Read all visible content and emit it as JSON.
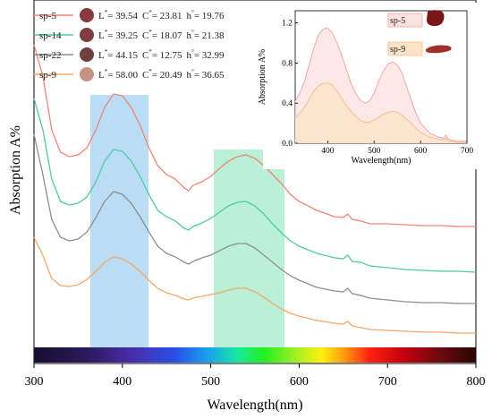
{
  "chart_data": [
    {
      "type": "line",
      "xlabel": "Wavelength(nm)",
      "ylabel": "Absorption A%",
      "xlim": [
        300,
        800
      ],
      "xticks": [
        300,
        400,
        500,
        600,
        700,
        800
      ],
      "y_ticks_shown": false,
      "grid": false,
      "legend_position": "top-left",
      "highlight_bands": [
        {
          "x_range": [
            362,
            428
          ],
          "color": "#a9d4f2"
        },
        {
          "x_range": [
            502,
            582
          ],
          "color": "#a8eccc"
        }
      ],
      "spectrum_bar": true,
      "series": [
        {
          "name": "sp-5",
          "color": "#f08478",
          "swatch": "#8a3a3c",
          "L": "39.54",
          "C": "23.81",
          "h": "19.76",
          "x": [
            300,
            310,
            320,
            330,
            340,
            350,
            360,
            370,
            380,
            390,
            400,
            410,
            420,
            430,
            440,
            450,
            460,
            470,
            475,
            480,
            490,
            500,
            510,
            520,
            530,
            540,
            550,
            560,
            570,
            580,
            590,
            600,
            620,
            640,
            650,
            655,
            660,
            670,
            680,
            700,
            720,
            740,
            760,
            780,
            800
          ],
          "y": [
            3.95,
            3.6,
            3.0,
            2.75,
            2.7,
            2.72,
            2.8,
            3.0,
            3.25,
            3.4,
            3.38,
            3.25,
            3.05,
            2.8,
            2.6,
            2.5,
            2.45,
            2.35,
            2.32,
            2.38,
            2.42,
            2.48,
            2.57,
            2.65,
            2.7,
            2.72,
            2.68,
            2.6,
            2.5,
            2.4,
            2.28,
            2.2,
            2.1,
            2.03,
            2.02,
            2.06,
            2.0,
            1.98,
            1.95,
            1.95,
            1.94,
            1.93,
            1.93,
            1.92,
            1.92
          ]
        },
        {
          "name": "sp-14",
          "color": "#4fcaa5",
          "swatch": "#7e3e42",
          "L": "39.25",
          "C": "18.07",
          "h": "21.38",
          "x": [
            300,
            310,
            320,
            330,
            340,
            350,
            360,
            370,
            380,
            390,
            400,
            410,
            420,
            430,
            440,
            450,
            460,
            470,
            475,
            480,
            490,
            500,
            510,
            520,
            530,
            540,
            550,
            560,
            570,
            580,
            590,
            600,
            620,
            640,
            650,
            655,
            660,
            670,
            680,
            700,
            720,
            740,
            760,
            780,
            800
          ],
          "y": [
            3.35,
            3.0,
            2.45,
            2.2,
            2.16,
            2.18,
            2.25,
            2.42,
            2.65,
            2.78,
            2.76,
            2.65,
            2.48,
            2.28,
            2.1,
            2.03,
            1.98,
            1.9,
            1.88,
            1.92,
            1.96,
            2.01,
            2.08,
            2.15,
            2.19,
            2.2,
            2.15,
            2.06,
            1.95,
            1.85,
            1.76,
            1.7,
            1.62,
            1.57,
            1.56,
            1.6,
            1.53,
            1.52,
            1.48,
            1.46,
            1.44,
            1.43,
            1.42,
            1.42,
            1.41
          ]
        },
        {
          "name": "sp-22",
          "color": "#8e8e8e",
          "swatch": "#6e4040",
          "L": "44.15",
          "C": "12.75",
          "h": "32.99",
          "x": [
            300,
            310,
            320,
            330,
            340,
            350,
            360,
            370,
            380,
            390,
            400,
            410,
            420,
            430,
            440,
            450,
            460,
            470,
            475,
            480,
            490,
            500,
            510,
            520,
            530,
            540,
            550,
            560,
            570,
            580,
            590,
            600,
            620,
            640,
            650,
            655,
            660,
            670,
            680,
            700,
            720,
            740,
            760,
            780,
            800
          ],
          "y": [
            2.95,
            2.5,
            2.0,
            1.8,
            1.76,
            1.78,
            1.86,
            2.02,
            2.2,
            2.31,
            2.28,
            2.18,
            2.03,
            1.86,
            1.7,
            1.62,
            1.58,
            1.52,
            1.5,
            1.53,
            1.57,
            1.6,
            1.65,
            1.7,
            1.73,
            1.73,
            1.68,
            1.6,
            1.52,
            1.44,
            1.37,
            1.32,
            1.24,
            1.2,
            1.19,
            1.23,
            1.17,
            1.15,
            1.12,
            1.1,
            1.08,
            1.07,
            1.07,
            1.06,
            1.06
          ]
        },
        {
          "name": "sp-9",
          "color": "#f5a868",
          "swatch": "#c49386",
          "L": "58.00",
          "C": "20.49",
          "h": "36.65",
          "x": [
            300,
            310,
            320,
            330,
            340,
            350,
            360,
            370,
            380,
            390,
            400,
            410,
            420,
            430,
            440,
            450,
            460,
            470,
            475,
            480,
            490,
            500,
            510,
            520,
            530,
            540,
            550,
            560,
            570,
            580,
            590,
            600,
            620,
            640,
            650,
            655,
            660,
            670,
            680,
            700,
            720,
            740,
            760,
            780,
            800
          ],
          "y": [
            1.8,
            1.6,
            1.34,
            1.26,
            1.25,
            1.27,
            1.33,
            1.42,
            1.52,
            1.58,
            1.56,
            1.5,
            1.42,
            1.32,
            1.23,
            1.18,
            1.15,
            1.11,
            1.1,
            1.12,
            1.14,
            1.16,
            1.18,
            1.21,
            1.23,
            1.23,
            1.19,
            1.13,
            1.06,
            1.0,
            0.95,
            0.92,
            0.87,
            0.84,
            0.83,
            0.86,
            0.81,
            0.79,
            0.77,
            0.76,
            0.75,
            0.74,
            0.74,
            0.73,
            0.73
          ]
        }
      ]
    },
    {
      "type": "area",
      "xlabel": "Wavelength(nm)",
      "ylabel": "Absorption A%",
      "xlim": [
        330,
        700
      ],
      "ylim": [
        0.0,
        1.25
      ],
      "xticks": [
        400,
        500,
        600,
        700
      ],
      "yticks": [
        0.0,
        0.4,
        0.8,
        1.2
      ],
      "ytick_labels": [
        "0.0",
        "0.4",
        "0.8",
        "1.2"
      ],
      "legend_position": "top-right",
      "series": [
        {
          "name": "sp-5",
          "color": "#f4a7a7",
          "fill": "#fbe1df",
          "x": [
            330,
            340,
            350,
            360,
            370,
            380,
            390,
            400,
            410,
            420,
            430,
            440,
            450,
            460,
            470,
            480,
            490,
            500,
            510,
            520,
            530,
            540,
            550,
            560,
            570,
            580,
            590,
            600,
            620,
            640,
            650,
            655,
            660,
            670,
            680,
            700
          ],
          "y": [
            0.42,
            0.5,
            0.62,
            0.78,
            0.95,
            1.08,
            1.14,
            1.15,
            1.1,
            1.0,
            0.88,
            0.74,
            0.6,
            0.5,
            0.43,
            0.4,
            0.42,
            0.5,
            0.62,
            0.72,
            0.79,
            0.81,
            0.78,
            0.7,
            0.57,
            0.43,
            0.3,
            0.2,
            0.1,
            0.06,
            0.05,
            0.08,
            0.04,
            0.03,
            0.02,
            0.02
          ]
        },
        {
          "name": "sp-9",
          "color": "#f6c08d",
          "fill": "#fce3c8",
          "x": [
            330,
            340,
            350,
            360,
            370,
            380,
            390,
            400,
            410,
            420,
            430,
            440,
            450,
            460,
            470,
            480,
            490,
            500,
            510,
            520,
            530,
            540,
            550,
            560,
            570,
            580,
            590,
            600,
            620,
            640,
            650,
            655,
            660,
            670,
            680,
            700
          ],
          "y": [
            0.25,
            0.3,
            0.36,
            0.44,
            0.52,
            0.57,
            0.6,
            0.6,
            0.58,
            0.52,
            0.45,
            0.38,
            0.32,
            0.27,
            0.23,
            0.21,
            0.21,
            0.23,
            0.26,
            0.29,
            0.31,
            0.32,
            0.31,
            0.28,
            0.24,
            0.2,
            0.15,
            0.11,
            0.06,
            0.04,
            0.03,
            0.05,
            0.02,
            0.02,
            0.01,
            0.01
          ]
        }
      ]
    }
  ]
}
